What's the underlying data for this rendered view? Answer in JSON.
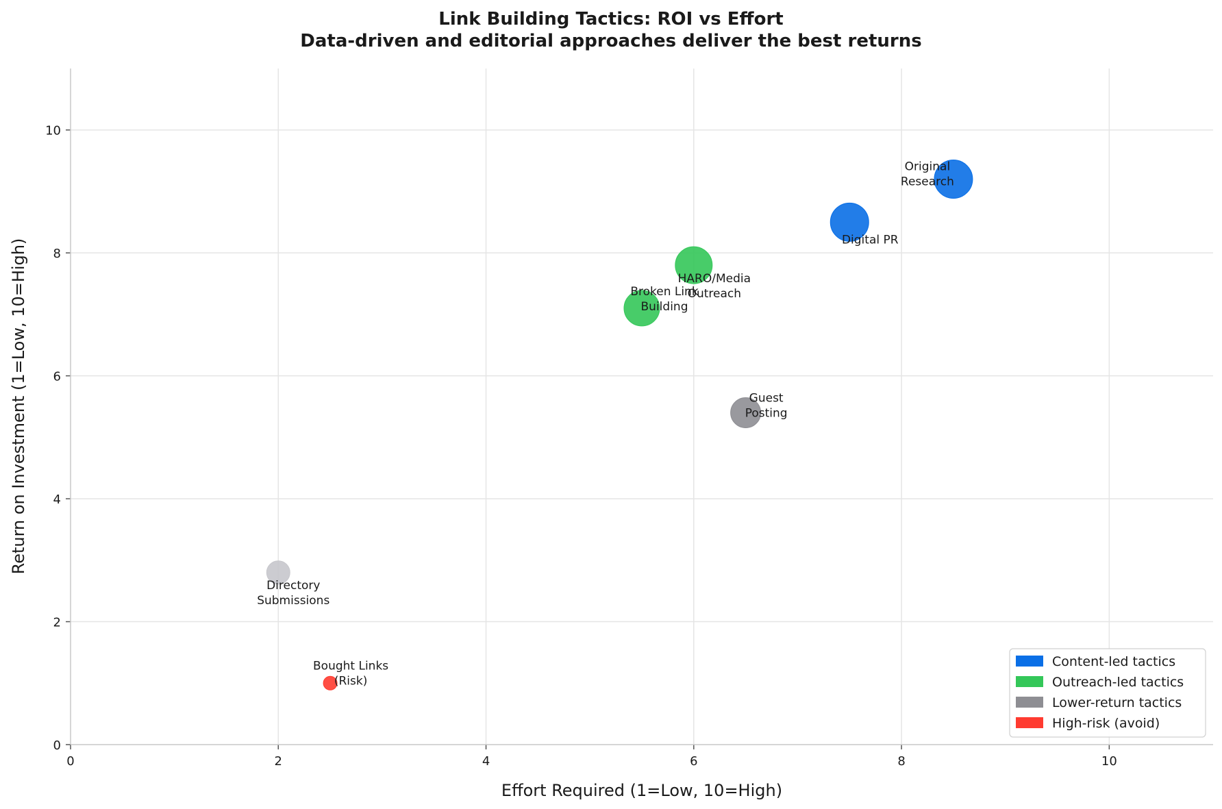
{
  "chart_data": {
    "type": "scatter",
    "title_line1": "Link Building Tactics: ROI vs Effort",
    "title_line2": "Data-driven and editorial approaches deliver the best returns",
    "xlabel": "Effort Required (1=Low, 10=High)",
    "ylabel": "Return on Investment (1=Low, 10=High)",
    "xlim": [
      0,
      11
    ],
    "ylim": [
      0,
      11
    ],
    "xticks": [
      0,
      2,
      4,
      6,
      8,
      10
    ],
    "yticks": [
      0,
      2,
      4,
      6,
      8,
      10
    ],
    "grid": true,
    "legend_position": "lower-right",
    "legend": [
      {
        "label": "Content-led tactics",
        "color": "#0A6FE6"
      },
      {
        "label": "Outreach-led tactics",
        "color": "#34C759"
      },
      {
        "label": "Lower-return tactics",
        "color": "#8E8E93"
      },
      {
        "label": "High-risk (avoid)",
        "color": "#FF3B30"
      }
    ],
    "points": [
      {
        "label": [
          "Original",
          "Research"
        ],
        "x": 8.5,
        "y": 9.2,
        "size": 3,
        "group": "Content-led tactics",
        "color": "#0A6FE6"
      },
      {
        "label": [
          "Digital PR"
        ],
        "x": 7.5,
        "y": 8.5,
        "size": 2.7,
        "group": "Content-led tactics",
        "color": "#0A6FE6"
      },
      {
        "label": [
          "HARO/Media",
          "Outreach"
        ],
        "x": 6.0,
        "y": 7.8,
        "size": 2.6,
        "group": "Outreach-led tactics",
        "color": "#34C759"
      },
      {
        "label": [
          "Broken Link",
          "Building"
        ],
        "x": 5.5,
        "y": 7.1,
        "size": 2.4,
        "group": "Outreach-led tactics",
        "color": "#34C759"
      },
      {
        "label": [
          "Guest",
          "Posting"
        ],
        "x": 6.5,
        "y": 5.4,
        "size": 2,
        "group": "Lower-return tactics",
        "color": "#8E8E93"
      },
      {
        "label": [
          "Directory",
          "Submissions"
        ],
        "x": 2.0,
        "y": 2.8,
        "size": 1.4,
        "group": "Lower-return tactics",
        "color": "#C7C7CC"
      },
      {
        "label": [
          "Bought Links",
          "(Risk)"
        ],
        "x": 2.5,
        "y": 1.0,
        "size": 1,
        "group": "High-risk (avoid)",
        "color": "#FF3B30"
      }
    ]
  }
}
